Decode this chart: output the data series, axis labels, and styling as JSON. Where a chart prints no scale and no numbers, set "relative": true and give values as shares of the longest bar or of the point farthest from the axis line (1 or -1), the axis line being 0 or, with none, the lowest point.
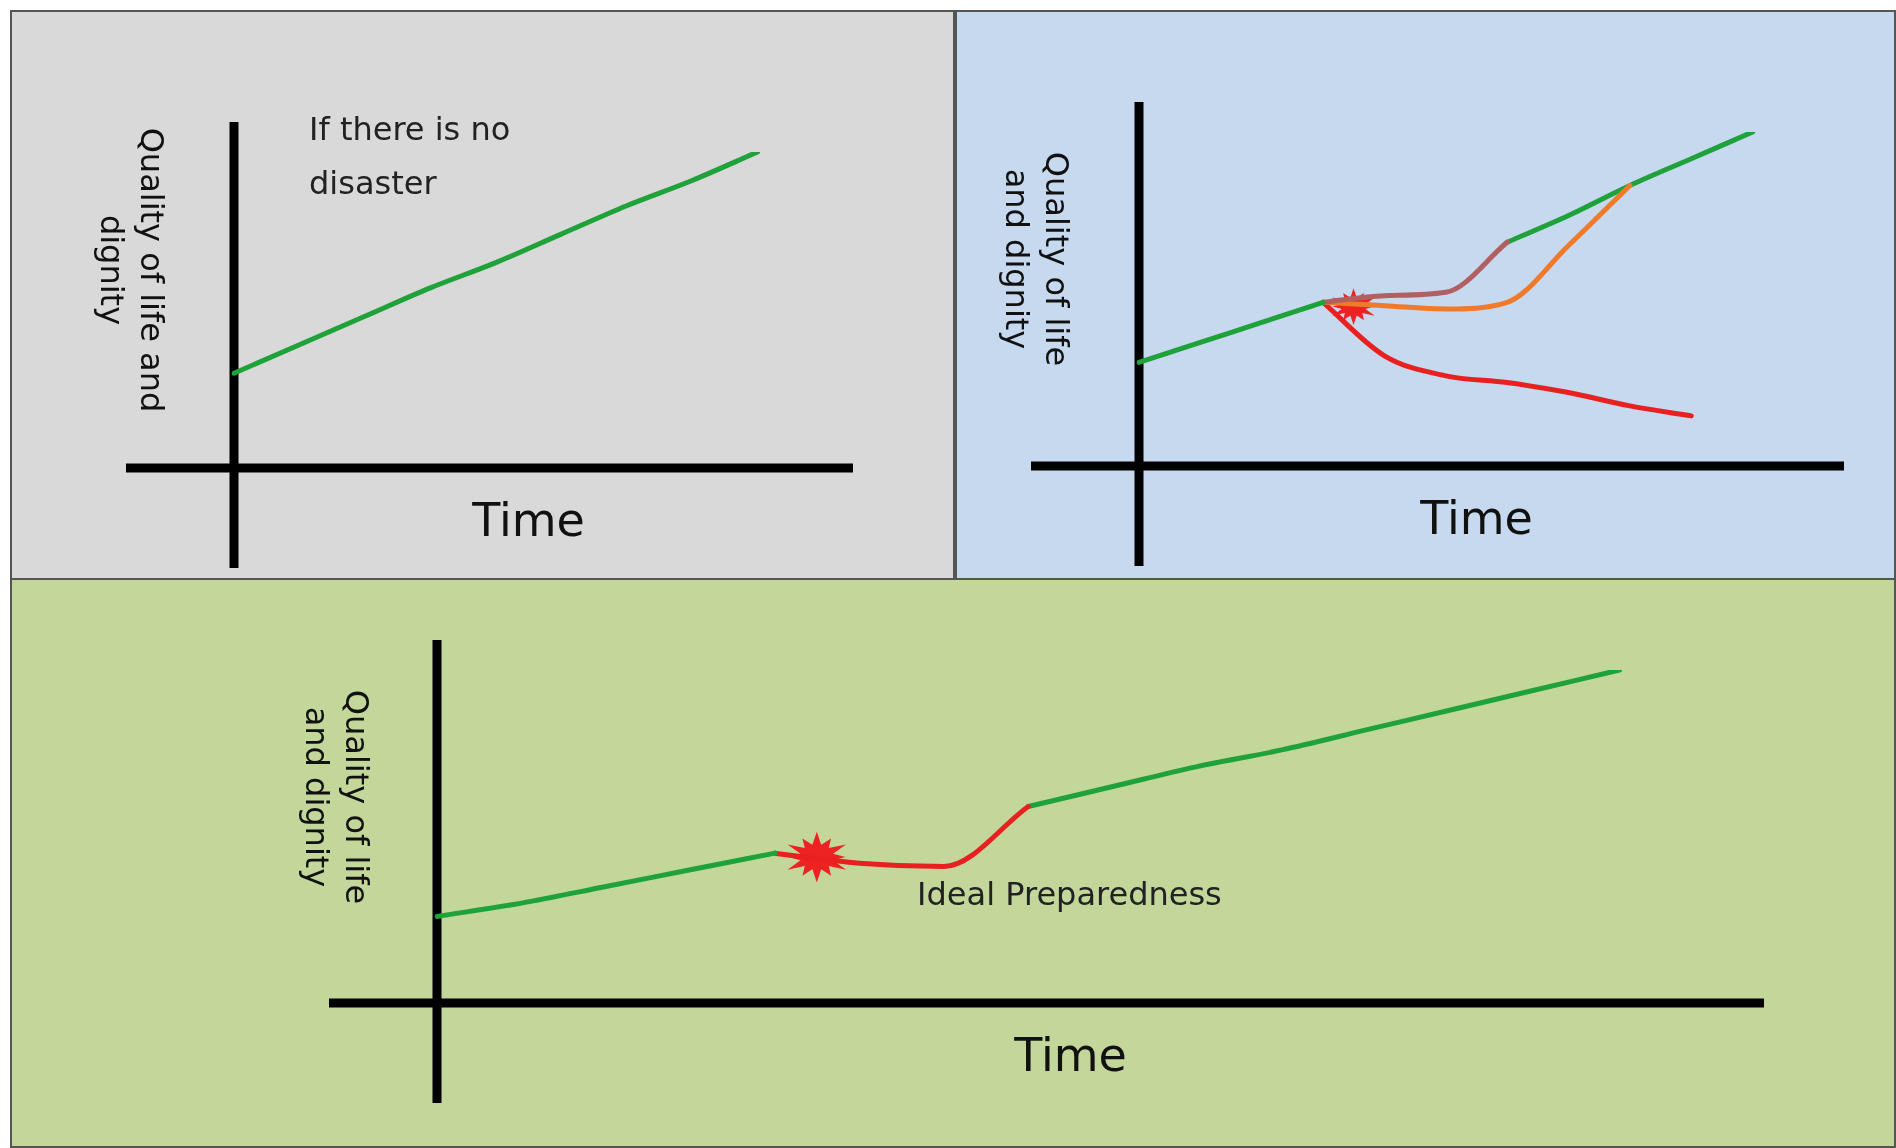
{
  "chart_data": [
    {
      "type": "line",
      "relative": true,
      "ylabel": "Quality of life and dignity",
      "xlabel": "Time",
      "annotations": [
        "If there  is no disaster"
      ],
      "categories": [
        null,
        null,
        null,
        null,
        null,
        null,
        null,
        null,
        null,
        null
      ],
      "series": [
        {
          "color": "#1fa23a",
          "values": [
            0.3,
            0.39,
            0.48,
            0.57,
            0.65,
            0.74,
            0.83,
            0.91,
            1.0,
            null
          ]
        }
      ]
    },
    {
      "type": "line",
      "relative": true,
      "ylabel": "Quality of life and dignity",
      "xlabel": "Time",
      "categories": [
        null,
        null,
        null,
        null,
        null,
        null,
        null,
        null,
        null,
        null,
        null,
        null
      ],
      "series": [
        {
          "color": "#1fa23a",
          "values": [
            0.31,
            0.37,
            0.43,
            0.49,
            null,
            null,
            null,
            null,
            null,
            null,
            null,
            null
          ]
        },
        {
          "color": "#b06060",
          "values": [
            null,
            null,
            null,
            0.49,
            0.51,
            0.52,
            0.67,
            null,
            null,
            null,
            null,
            null
          ]
        },
        {
          "color": "#f07a2a",
          "values": [
            null,
            null,
            null,
            0.49,
            0.48,
            0.47,
            0.49,
            0.66,
            0.84,
            null,
            null,
            null
          ]
        },
        {
          "color": "#e82020",
          "values": [
            null,
            null,
            null,
            0.49,
            0.33,
            0.27,
            0.25,
            0.22,
            0.18,
            0.15,
            null,
            null
          ]
        },
        {
          "color": "#1fa23a",
          "values": [
            null,
            null,
            null,
            null,
            null,
            null,
            0.67,
            0.75,
            0.84,
            0.92,
            1.0,
            null
          ]
        }
      ]
    },
    {
      "type": "line",
      "relative": true,
      "ylabel": "Quality of life and dignity",
      "xlabel": "Time",
      "annotations": [
        "Ideal Preparedness"
      ],
      "categories": [
        null,
        null,
        null,
        null,
        null,
        null,
        null,
        null,
        null,
        null,
        null,
        null,
        null,
        null,
        null,
        null
      ],
      "series": [
        {
          "color": "#1fa23a",
          "values": [
            0.26,
            0.3,
            0.35,
            0.4,
            0.45,
            null,
            null,
            null,
            null,
            null,
            null,
            null,
            null,
            null,
            null,
            null
          ]
        },
        {
          "color": "#e82020",
          "values": [
            null,
            null,
            null,
            null,
            0.45,
            0.42,
            0.41,
            0.59,
            null,
            null,
            null,
            null,
            null,
            null,
            null,
            null
          ]
        },
        {
          "color": "#1fa23a",
          "values": [
            null,
            null,
            null,
            null,
            null,
            null,
            null,
            0.59,
            0.65,
            0.71,
            0.76,
            0.82,
            0.88,
            0.94,
            1.0,
            null
          ]
        }
      ]
    }
  ]
}
